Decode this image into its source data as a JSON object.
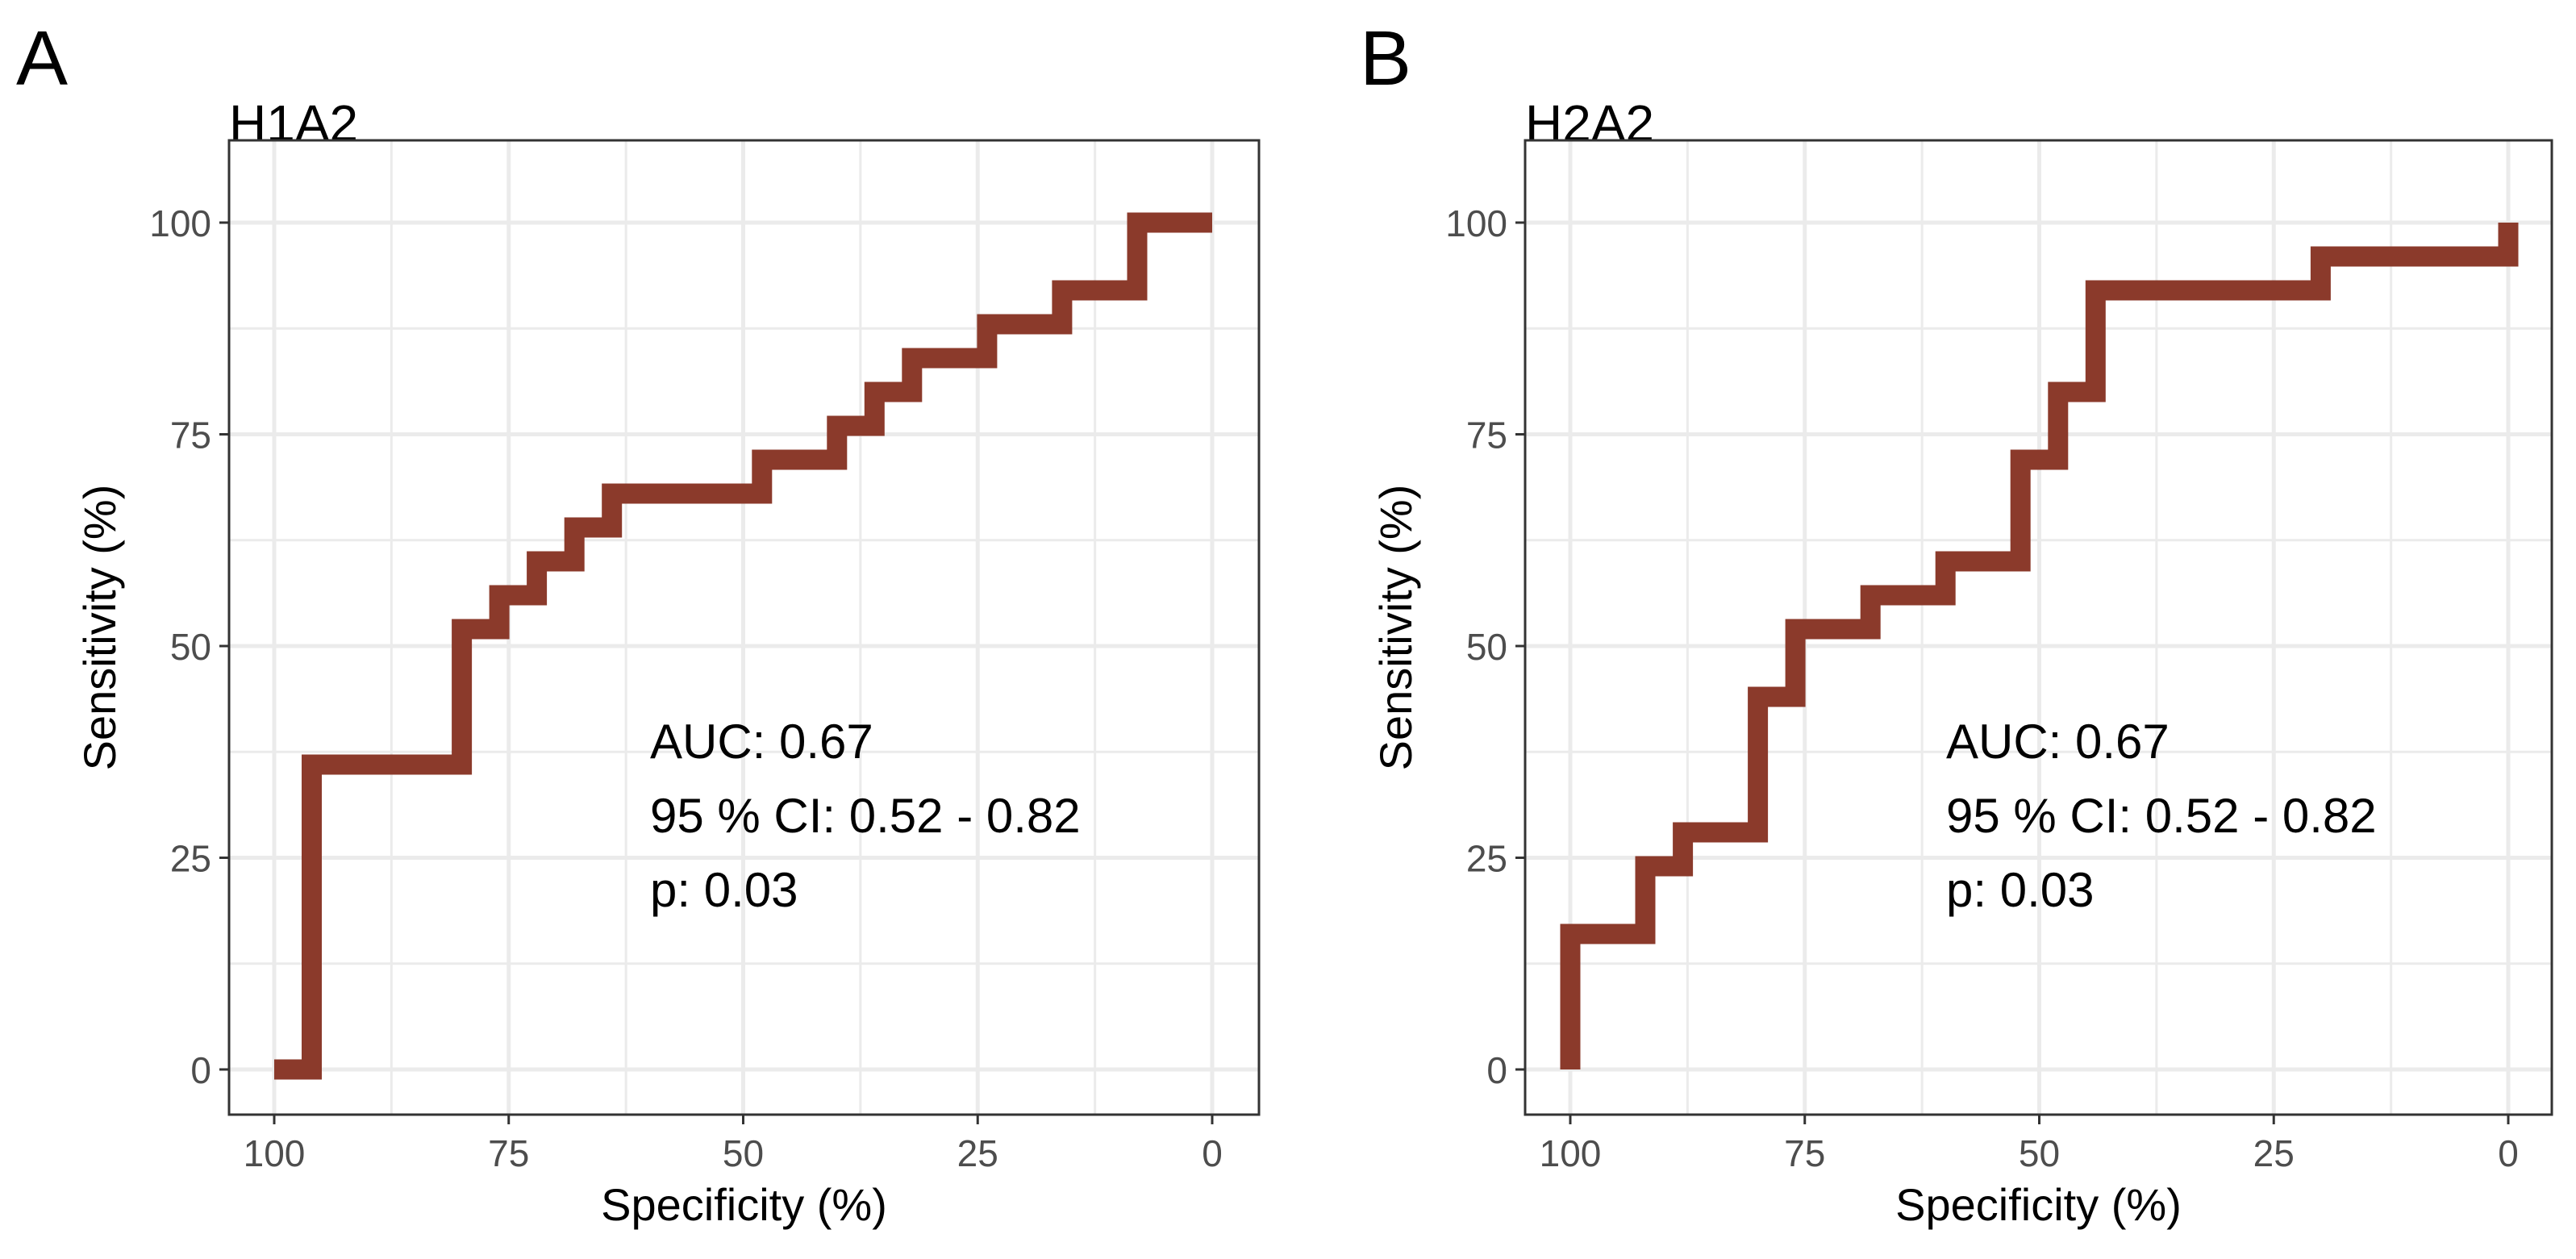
{
  "panels": [
    {
      "letter": "A",
      "title": "H1A2",
      "annotation": [
        "AUC: 0.67",
        "95 % CI: 0.52 - 0.82",
        "p: 0.03"
      ]
    },
    {
      "letter": "B",
      "title": "H2A2",
      "annotation": [
        "AUC: 0.67",
        "95 % CI: 0.52 - 0.82",
        "p: 0.03"
      ]
    }
  ],
  "colors": {
    "roc_line": "#8B3A2B",
    "grid": "#EBEBEB",
    "panel_border": "#333333",
    "tick_text": "#4D4D4D",
    "text": "#000000"
  },
  "chart_data": [
    {
      "type": "line",
      "title": "H1A2",
      "xlabel": "Specificity (%)",
      "ylabel": "Sensitivity (%)",
      "xlim": [
        100,
        0
      ],
      "ylim": [
        0,
        100
      ],
      "x_reversed": true,
      "x_ticks": [
        100,
        75,
        50,
        25,
        0
      ],
      "y_ticks": [
        0,
        25,
        50,
        75,
        100
      ],
      "grid": true,
      "series": [
        {
          "x": [
            100,
            96,
            96,
            80,
            80,
            76,
            76,
            72,
            72,
            68,
            68,
            64,
            64,
            48,
            48,
            40,
            40,
            36,
            36,
            32,
            32,
            24,
            24,
            16,
            16,
            8,
            8,
            0
          ],
          "y": [
            0,
            0,
            36,
            36,
            52,
            52,
            56,
            56,
            60,
            60,
            64,
            64,
            68,
            68,
            72,
            72,
            76,
            76,
            80,
            80,
            84,
            84,
            88,
            88,
            92,
            92,
            100,
            100
          ]
        }
      ]
    },
    {
      "type": "line",
      "title": "H2A2",
      "xlabel": "Specificity (%)",
      "ylabel": "Sensitivity (%)",
      "xlim": [
        100,
        0
      ],
      "ylim": [
        0,
        100
      ],
      "x_reversed": true,
      "x_ticks": [
        100,
        75,
        50,
        25,
        0
      ],
      "y_ticks": [
        0,
        25,
        50,
        75,
        100
      ],
      "grid": true,
      "series": [
        {
          "x": [
            100,
            100,
            92,
            92,
            88,
            88,
            80,
            80,
            76,
            76,
            68,
            68,
            60,
            60,
            52,
            52,
            48,
            48,
            44,
            44,
            20,
            20,
            0,
            0
          ],
          "y": [
            0,
            16,
            16,
            24,
            24,
            28,
            28,
            44,
            44,
            52,
            52,
            56,
            56,
            60,
            60,
            72,
            72,
            80,
            80,
            92,
            92,
            96,
            96,
            100
          ]
        }
      ]
    }
  ]
}
